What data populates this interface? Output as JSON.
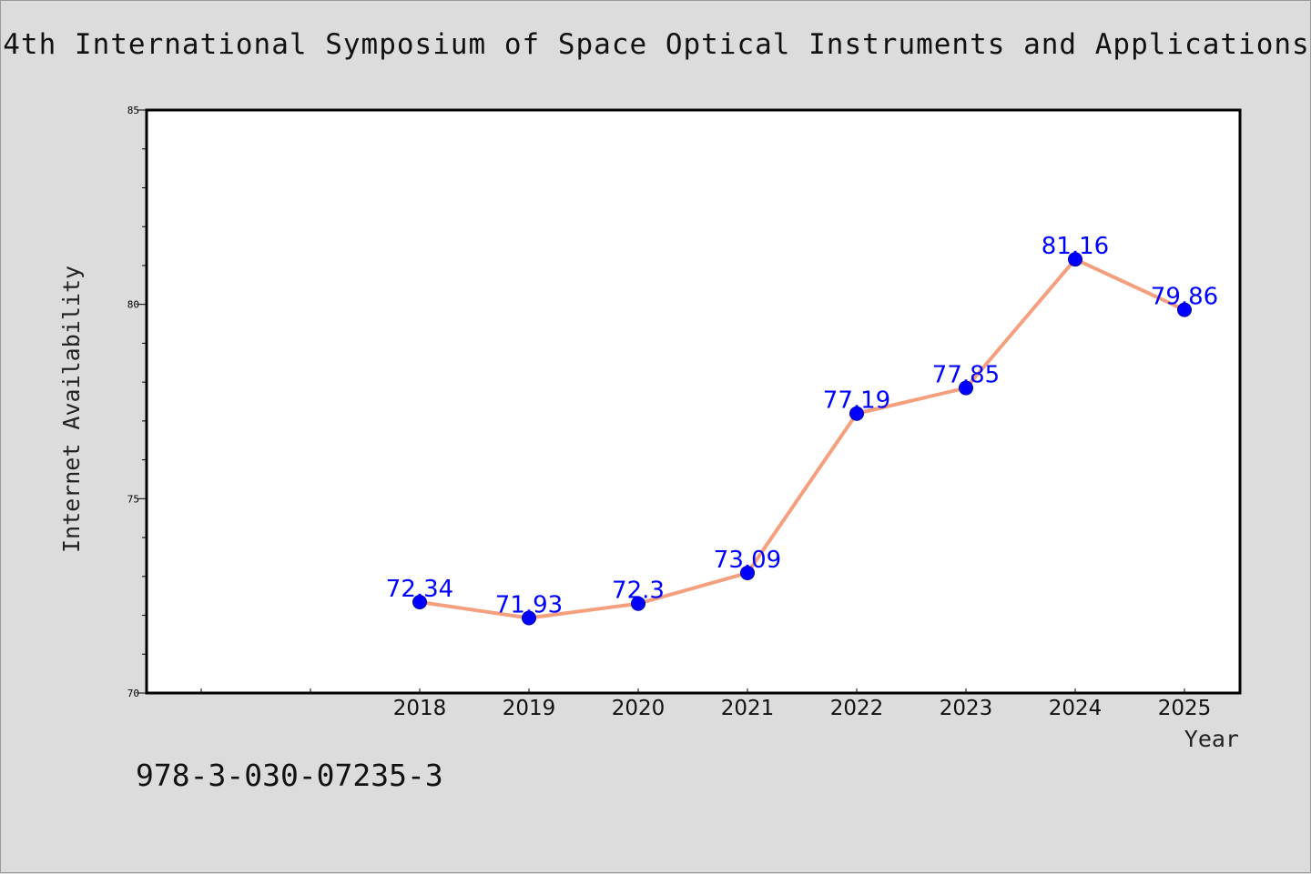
{
  "header": {
    "title": "4th International Symposium of Space Optical Instruments and Applications"
  },
  "footer": {
    "isbn": "978-3-030-07235-3"
  },
  "colors": {
    "line": "#f4a07e",
    "marker": "#0000ff",
    "label": "#0000ff",
    "plot_bg": "#ffffff",
    "page_bg": "#dcdcdc"
  },
  "chart_data": {
    "type": "line",
    "title": "4th International Symposium of Space Optical Instruments and Applications",
    "xlabel": "Year",
    "ylabel": "Internet Availability",
    "x_ticks": [
      "2018",
      "2019",
      "2020",
      "2021",
      "2022",
      "2023",
      "2024",
      "2025"
    ],
    "y_ticks": [
      "70",
      "75",
      "80",
      "85"
    ],
    "ylim": [
      70,
      85
    ],
    "grid": false,
    "series": [
      {
        "x": [
          "2018",
          "2019",
          "2020",
          "2021",
          "2022",
          "2023",
          "2024",
          "2025"
        ],
        "values": [
          72.34,
          71.93,
          72.3,
          73.09,
          77.19,
          77.85,
          81.16,
          79.86
        ],
        "labels": [
          "72.34",
          "71.93",
          "72.3",
          "73.09",
          "77.19",
          "77.85",
          "81.16",
          "79.86"
        ]
      }
    ]
  }
}
